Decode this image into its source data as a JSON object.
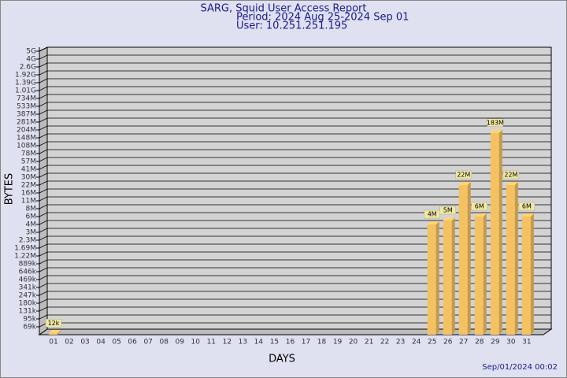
{
  "chart_data": {
    "type": "bar3d",
    "title": "SARG, Squid User Access Report",
    "subtitle": [
      "Period: 2024 Aug 25-2024 Sep 01",
      "User: 10.251.251.195"
    ],
    "xlabel": "DAYS",
    "ylabel": "BYTES",
    "footer": "Sep/01/2024 00:02",
    "categories": [
      "01",
      "02",
      "03",
      "04",
      "05",
      "06",
      "07",
      "08",
      "09",
      "10",
      "11",
      "12",
      "13",
      "14",
      "15",
      "16",
      "17",
      "18",
      "19",
      "20",
      "21",
      "22",
      "23",
      "24",
      "25",
      "26",
      "27",
      "28",
      "29",
      "30",
      "31"
    ],
    "values": [
      12000,
      null,
      null,
      null,
      null,
      null,
      null,
      null,
      null,
      null,
      null,
      null,
      null,
      null,
      null,
      null,
      null,
      null,
      null,
      null,
      null,
      null,
      null,
      null,
      4000000,
      5000000,
      22000000,
      6000000,
      183000000,
      22000000,
      6000000
    ],
    "value_labels": [
      "12k",
      null,
      null,
      null,
      null,
      null,
      null,
      null,
      null,
      null,
      null,
      null,
      null,
      null,
      null,
      null,
      null,
      null,
      null,
      null,
      null,
      null,
      null,
      null,
      "4M",
      "5M",
      "22M",
      "6M",
      "183M",
      "22M",
      "6M"
    ],
    "color": "#f5c262",
    "ylim": [
      0,
      5000000000
    ],
    "yticks": [
      {
        "value": 69000,
        "label": "69k"
      },
      {
        "value": 95000,
        "label": "95k"
      },
      {
        "value": 131000,
        "label": "131k"
      },
      {
        "value": 180000,
        "label": "180k"
      },
      {
        "value": 247000,
        "label": "247k"
      },
      {
        "value": 341000,
        "label": "341k"
      },
      {
        "value": 469000,
        "label": "469k"
      },
      {
        "value": 646000,
        "label": "646k"
      },
      {
        "value": 889000,
        "label": "889k"
      },
      {
        "value": 1220000,
        "label": "1.22M"
      },
      {
        "value": 1690000,
        "label": "1.69M"
      },
      {
        "value": 2300000,
        "label": "2.3M"
      },
      {
        "value": 3000000,
        "label": "3M"
      },
      {
        "value": 4000000,
        "label": "4M"
      },
      {
        "value": 6000000,
        "label": "6M"
      },
      {
        "value": 8000000,
        "label": "8M"
      },
      {
        "value": 11000000,
        "label": "11M"
      },
      {
        "value": 16000000,
        "label": "16M"
      },
      {
        "value": 22000000,
        "label": "22M"
      },
      {
        "value": 30000000,
        "label": "30M"
      },
      {
        "value": 41000000,
        "label": "41M"
      },
      {
        "value": 57000000,
        "label": "57M"
      },
      {
        "value": 78000000,
        "label": "78M"
      },
      {
        "value": 108000000,
        "label": "108M"
      },
      {
        "value": 148000000,
        "label": "148M"
      },
      {
        "value": 204000000,
        "label": "204M"
      },
      {
        "value": 281000000,
        "label": "281M"
      },
      {
        "value": 387000000,
        "label": "387M"
      },
      {
        "value": 533000000,
        "label": "533M"
      },
      {
        "value": 734000000,
        "label": "734M"
      },
      {
        "value": 1010000000,
        "label": "1.01G"
      },
      {
        "value": 1390000000,
        "label": "1.39G"
      },
      {
        "value": 1920000000,
        "label": "1.92G"
      },
      {
        "value": 2600000000,
        "label": "2.6G"
      },
      {
        "value": 4000000000,
        "label": "4G"
      },
      {
        "value": 5000000000,
        "label": "5G"
      }
    ],
    "grid": true
  }
}
